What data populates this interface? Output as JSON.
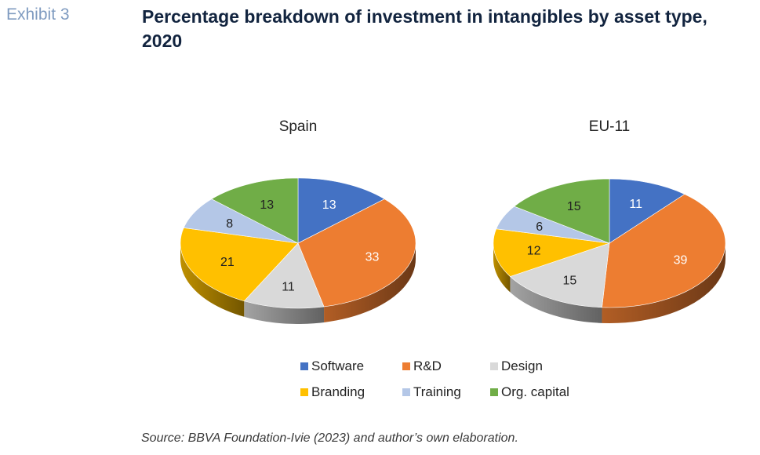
{
  "header": {
    "exhibit": "Exhibit 3",
    "title": "Percentage breakdown of investment in intangibles by asset type, 2020"
  },
  "source": "Source: BBVA Foundation-Ivie (2023) and author’s own elaboration.",
  "legend": {
    "items": [
      {
        "label": "Software",
        "color": "#4472c4"
      },
      {
        "label": "R&D",
        "color": "#ed7d31"
      },
      {
        "label": "Design",
        "color": "#d9d9d9"
      },
      {
        "label": "Branding",
        "color": "#ffc000"
      },
      {
        "label": "Training",
        "color": "#b4c7e7"
      },
      {
        "label": "Org. capital",
        "color": "#70ad47"
      }
    ]
  },
  "chart_data": [
    {
      "type": "pie",
      "title": "Spain",
      "categories": [
        "Software",
        "R&D",
        "Design",
        "Branding",
        "Training",
        "Org. capital"
      ],
      "values": [
        13,
        33,
        11,
        21,
        8,
        13
      ],
      "colors": [
        "#4472c4",
        "#ed7d31",
        "#d9d9d9",
        "#ffc000",
        "#b4c7e7",
        "#70ad47"
      ],
      "style": "3d"
    },
    {
      "type": "pie",
      "title": "EU-11",
      "categories": [
        "Software",
        "R&D",
        "Design",
        "Branding",
        "Training",
        "Org. capital"
      ],
      "values": [
        11,
        39,
        15,
        12,
        6,
        15
      ],
      "colors": [
        "#4472c4",
        "#ed7d31",
        "#d9d9d9",
        "#ffc000",
        "#b4c7e7",
        "#70ad47"
      ],
      "style": "3d"
    }
  ]
}
